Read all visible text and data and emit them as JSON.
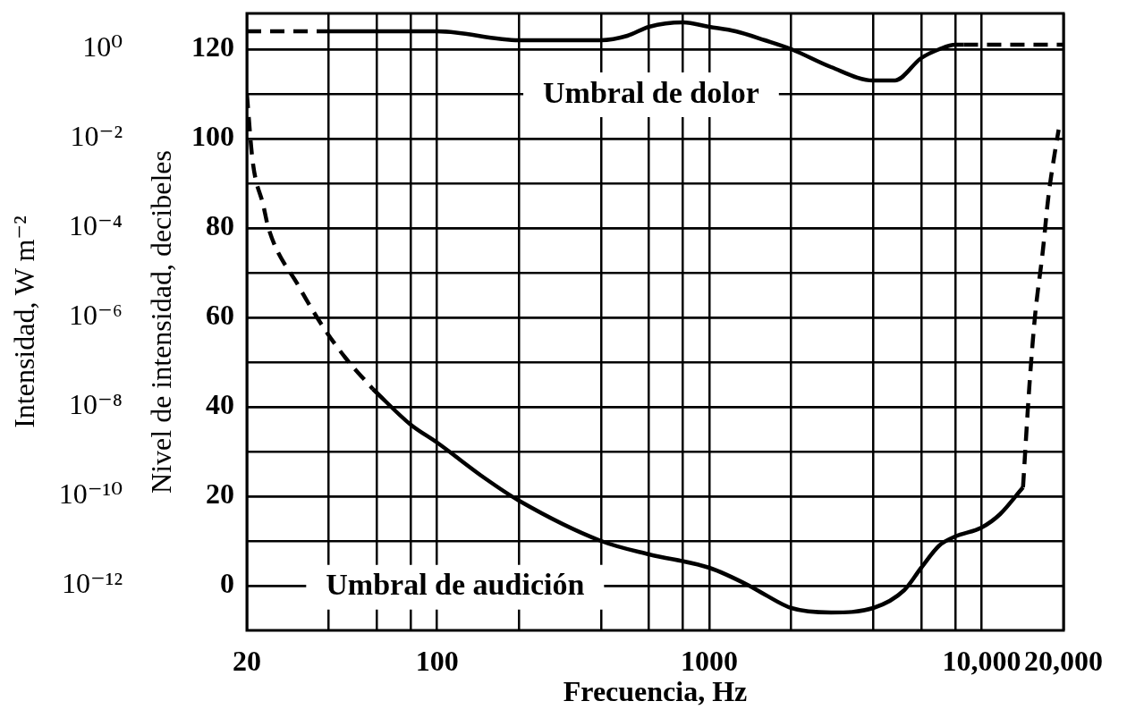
{
  "chart_data": {
    "type": "line",
    "xlabel": "Frecuencia, Hz",
    "ylabel": "Intensidad, W m⁻²",
    "y2label": "Nivel de intensidad, decibeles",
    "log": "xy",
    "grid": true,
    "xlim": [
      20,
      20000
    ],
    "xticks": [
      20,
      {
        "value": 40,
        "label": null
      },
      {
        "value": 60,
        "label": null
      },
      {
        "value": 80,
        "label": null
      },
      100,
      {
        "value": 200,
        "label": null
      },
      {
        "value": 400,
        "label": null
      },
      {
        "value": 600,
        "label": null
      },
      {
        "value": 800,
        "label": null
      },
      1000,
      {
        "value": 2000,
        "label": null
      },
      {
        "value": 4000,
        "label": null
      },
      {
        "value": 6000,
        "label": null
      },
      {
        "value": 8000,
        "label": null
      },
      {
        "value": 10000,
        "label": "10,000"
      },
      {
        "value": 20000,
        "label": "20,000"
      }
    ],
    "ylim": [
      1e-13,
      6.3
    ],
    "yticks": [
      {
        "value": 1e-12,
        "label": "10⁻¹²"
      },
      {
        "value": 1e-10,
        "label": "10⁻¹⁰"
      },
      {
        "value": 1e-08,
        "label": "10⁻⁸"
      },
      {
        "value": 1e-06,
        "label": "10⁻⁶"
      },
      {
        "value": 0.0001,
        "label": "10⁻⁴"
      },
      {
        "value": 0.01,
        "label": "10⁻²"
      },
      {
        "value": 1,
        "label": "10⁰"
      }
    ],
    "y2lim": [
      -10,
      128
    ],
    "y2ticks": [
      0,
      {
        "value": 10,
        "label": null
      },
      20,
      {
        "value": 30,
        "label": null
      },
      40,
      {
        "value": 50,
        "label": null
      },
      60,
      {
        "value": 70,
        "label": null
      },
      80,
      {
        "value": 90,
        "label": null
      },
      100,
      {
        "value": 110,
        "label": null
      },
      120
    ],
    "series": [
      {
        "color": "#000000",
        "line_style": "dashed",
        "axis": "y2",
        "x": [
          20,
          40
        ],
        "values": [
          124,
          124
        ]
      },
      {
        "name": "Umbral de dolor",
        "color": "#000000",
        "axis": "y2",
        "x": [
          40,
          80,
          100,
          200,
          260,
          400,
          500,
          600,
          800,
          1000,
          1250,
          1600,
          2000,
          2800,
          4000,
          4800,
          6000,
          7000,
          8000,
          8600
        ],
        "values": [
          124,
          124,
          124,
          122,
          122,
          122,
          123,
          125,
          126,
          125,
          124,
          122,
          120,
          116,
          113,
          113,
          118,
          120,
          121,
          121
        ]
      },
      {
        "color": "#000000",
        "line_style": "dashed",
        "axis": "y2",
        "x": [
          8600,
          20000
        ],
        "values": [
          121,
          121
        ]
      },
      {
        "color": "#000000",
        "line_style": "dashed",
        "axis": "y2",
        "x": [
          20,
          21,
          23,
          24,
          31,
          38,
          46,
          58
        ],
        "values": [
          110,
          95,
          85,
          80,
          67,
          58,
          51,
          44
        ]
      },
      {
        "name": "Umbral de audición",
        "color": "#000000",
        "axis": "y2",
        "x": [
          58,
          80,
          100,
          150,
          200,
          400,
          600,
          1000,
          1400,
          1600,
          2000,
          2800,
          4000,
          5200,
          6000,
          7000,
          8000,
          10000,
          11700,
          14200
        ],
        "values": [
          44,
          36,
          32,
          24,
          19,
          10,
          7,
          4,
          0,
          -2,
          -5,
          -6,
          -5,
          -1,
          4,
          9,
          11,
          13,
          16,
          22
        ]
      },
      {
        "color": "#000000",
        "line_style": "dashed",
        "axis": "y2",
        "x": [
          14200,
          15000,
          15700,
          16800,
          17600,
          18600,
          19200
        ],
        "values": [
          22,
          45,
          60,
          75,
          87,
          97,
          102
        ]
      }
    ]
  }
}
